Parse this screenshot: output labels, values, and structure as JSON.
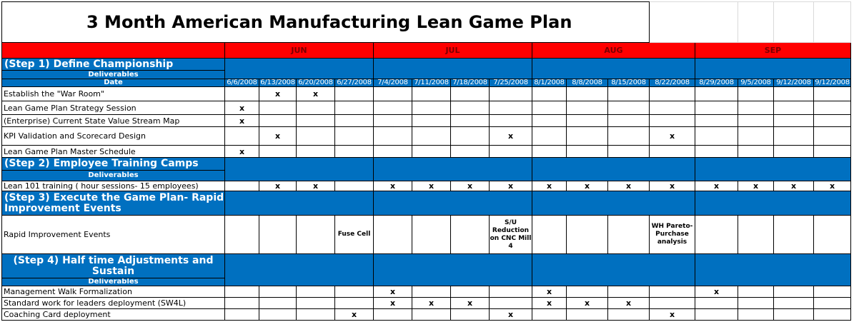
{
  "title": "3 Month American Manufacturing Lean Game Plan",
  "months": [
    "JUN",
    "JUL",
    "AUG",
    "SEP"
  ],
  "date_label": "Date",
  "deliverables_label": "Deliverables",
  "dates": [
    "6/6/2008",
    "6/13/2008",
    "6/20/2008",
    "6/27/2008",
    "7/4/2008",
    "7/11/2008",
    "7/18/2008",
    "7/25/2008",
    "8/1/2008",
    "8/8/2008",
    "8/15/2008",
    "8/22/2008",
    "8/29/2008",
    "9/5/2008",
    "9/12/2008",
    "9/12/2008"
  ],
  "steps": [
    "(Step 1) Define Championship",
    "(Step 2) Employee Training Camps",
    "(Step 3) Execute the Game Plan- Rapid Improvement Events",
    "(Step 4) Half time Adjustments and Sustain"
  ],
  "tasks": [
    {
      "label": "Establish the \"War Room\"",
      "marks": [
        "",
        "x",
        "x",
        "",
        "",
        "",
        "",
        "",
        "",
        "",
        "",
        "",
        "",
        "",
        "",
        ""
      ]
    },
    {
      "label": "Lean Game Plan Strategy Session",
      "marks": [
        "x",
        "",
        "",
        "",
        "",
        "",
        "",
        "",
        "",
        "",
        "",
        "",
        "",
        "",
        "",
        ""
      ]
    },
    {
      "label": "(Enterprise) Current State Value Stream Map",
      "marks": [
        "x",
        "",
        "",
        "",
        "",
        "",
        "",
        "",
        "",
        "",
        "",
        "",
        "",
        "",
        "",
        ""
      ]
    },
    {
      "label": "KPI Validation and Scorecard Design",
      "marks": [
        "",
        "x",
        "",
        "",
        "",
        "",
        "",
        "x",
        "",
        "",
        "",
        "x",
        "",
        "",
        "",
        ""
      ]
    },
    {
      "label": "Lean Game Plan Master Schedule",
      "marks": [
        "x",
        "",
        "",
        "",
        "",
        "",
        "",
        "",
        "",
        "",
        "",
        "",
        "",
        "",
        "",
        ""
      ]
    },
    {
      "label": "Lean 101 training ( hour sessions- 15 employees)",
      "marks": [
        "",
        "x",
        "x",
        "",
        "x",
        "x",
        "x",
        "x",
        "x",
        "x",
        "x",
        "x",
        "x",
        "x",
        "x",
        "x"
      ]
    },
    {
      "label": "Rapid Improvement Events",
      "marks": [
        "",
        "",
        "",
        "Fuse Cell",
        "",
        "",
        "",
        "S/U Reduction on CNC Mill 4",
        "",
        "",
        "",
        "WH Pareto-Purchase analysis",
        "",
        "",
        "",
        ""
      ]
    },
    {
      "label": "Management Walk Formalization",
      "marks": [
        "",
        "",
        "",
        "",
        "x",
        "",
        "",
        "",
        "x",
        "",
        "",
        "",
        "x",
        "",
        "",
        ""
      ]
    },
    {
      "label": "Standard work for leaders deployment (SW4L)",
      "marks": [
        "",
        "",
        "",
        "",
        "x",
        "x",
        "x",
        "",
        "x",
        "x",
        "x",
        "",
        "",
        "",
        "",
        ""
      ]
    },
    {
      "label": "Coaching Card deployment",
      "marks": [
        "",
        "",
        "",
        "x",
        "",
        "",
        "",
        "x",
        "",
        "",
        "",
        "x",
        "",
        "",
        "",
        ""
      ]
    }
  ]
}
